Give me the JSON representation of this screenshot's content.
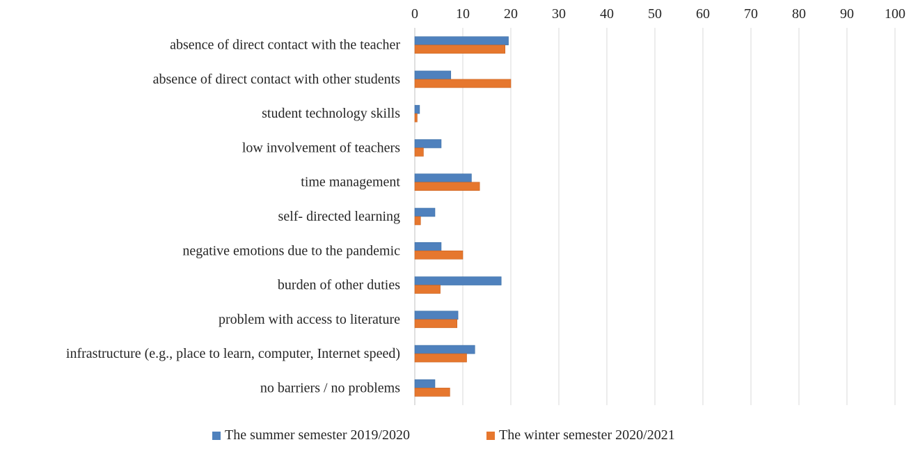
{
  "chart_data": {
    "type": "bar",
    "orientation": "horizontal",
    "categories": [
      "absence of direct contact with the teacher",
      "absence of direct contact with other students",
      "student technology skills",
      "low involvement of teachers",
      "time management",
      "self- directed learning",
      "negative emotions due to the pandemic",
      "burden of other duties",
      "problem with access to literature",
      "infrastructure (e.g., place to learn, computer, Internet speed)",
      "no barriers / no problems"
    ],
    "series": [
      {
        "name": "The summer semester 2019/2020",
        "color": "#4f81bd",
        "values": [
          19.5,
          7.5,
          1.0,
          5.5,
          11.8,
          4.2,
          5.5,
          18.0,
          9.0,
          12.5,
          4.2
        ]
      },
      {
        "name": "The winter semester 2020/2021",
        "color": "#e6772e",
        "values": [
          18.8,
          20.0,
          0.5,
          1.8,
          13.5,
          1.2,
          10.0,
          5.3,
          8.8,
          10.8,
          7.3
        ]
      }
    ],
    "xlim": [
      0,
      100
    ],
    "xticks": [
      "0",
      "10",
      "20",
      "30",
      "40",
      "50",
      "60",
      "70",
      "80",
      "90",
      "100"
    ],
    "x_axis_position": "top",
    "grid": "vertical",
    "legend_position": "bottom",
    "title": "",
    "xlabel": "",
    "ylabel": ""
  }
}
